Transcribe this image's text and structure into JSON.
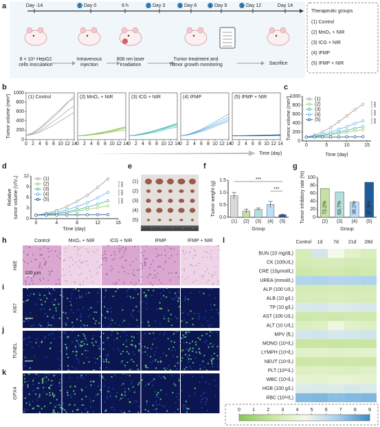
{
  "panel_labels": [
    "a",
    "b",
    "c",
    "d",
    "e",
    "f",
    "g",
    "h",
    "i",
    "j",
    "k",
    "l"
  ],
  "scheme": {
    "timeline": [
      {
        "label": "Day -14"
      },
      {
        "step": "1",
        "label": "Day 0"
      },
      {
        "label": "6 h"
      },
      {
        "step": "2",
        "label": "Day 3"
      },
      {
        "step": "3",
        "label": "Day 6"
      },
      {
        "step": "4",
        "label": "Day 9"
      },
      {
        "step": "5",
        "label": "Day 12"
      },
      {
        "label": "Day 14"
      }
    ],
    "stages": [
      [
        "8 × 10⁶ HepG2",
        "cells inoculation"
      ],
      [
        "Intravenous",
        "injection"
      ],
      [
        "808 nm laser",
        "irradiation"
      ],
      [
        "Tumor treatment and",
        "Tumor growth monitoring"
      ],
      [
        "Sacrifice"
      ]
    ],
    "groups_title": "Therapeutic groups",
    "groups": [
      "(1) Control",
      "(2) MnO₂ + NIR",
      "(3) ICG + NIR",
      "(4) IFMP",
      "(5) IFMP + NIR"
    ]
  },
  "chart_data": [
    {
      "type": "line",
      "title": "(1) Control",
      "y_label": "Tumor volume (mm³)",
      "x_label": "Time (day)",
      "x": [
        0,
        2,
        4,
        6,
        8,
        10,
        12,
        14
      ],
      "xlim": [
        0,
        14
      ],
      "xticks": [
        0,
        2,
        4,
        6,
        8,
        10,
        12,
        14
      ],
      "ylim": [
        0,
        1000
      ],
      "yticks": [
        0,
        200,
        400,
        600,
        800,
        1000
      ],
      "series": [
        {
          "color": "#9e9e9e",
          "values": [
            90,
            140,
            230,
            350,
            480,
            620,
            780,
            930
          ]
        },
        {
          "color": "#9e9e9e",
          "values": [
            90,
            150,
            250,
            380,
            520,
            650,
            800,
            880
          ]
        },
        {
          "color": "#9e9e9e",
          "values": [
            90,
            120,
            190,
            280,
            390,
            500,
            620,
            720
          ]
        },
        {
          "color": "#9e9e9e",
          "values": [
            90,
            110,
            160,
            230,
            310,
            400,
            490,
            580
          ]
        }
      ]
    },
    {
      "type": "line",
      "title": "(2) MnO₂ + NIR",
      "x": [
        0,
        2,
        4,
        6,
        8,
        10,
        12,
        14
      ],
      "xlim": [
        0,
        14
      ],
      "xticks": [
        0,
        2,
        4,
        6,
        8,
        10,
        12,
        14
      ],
      "ylim": [
        0,
        1000
      ],
      "series": [
        {
          "color": "#8cc152",
          "values": [
            80,
            95,
            115,
            140,
            170,
            200,
            240,
            280
          ]
        },
        {
          "color": "#8cc152",
          "values": [
            80,
            90,
            105,
            125,
            150,
            180,
            210,
            240
          ]
        },
        {
          "color": "#8cc152",
          "values": [
            80,
            85,
            100,
            115,
            135,
            160,
            185,
            200
          ]
        },
        {
          "color": "#8cc152",
          "values": [
            80,
            90,
            110,
            135,
            165,
            195,
            230,
            260
          ]
        }
      ]
    },
    {
      "type": "line",
      "title": "(3) ICG + NIR",
      "x": [
        0,
        2,
        4,
        6,
        8,
        10,
        12,
        14
      ],
      "xlim": [
        0,
        14
      ],
      "xticks": [
        0,
        2,
        4,
        6,
        8,
        10,
        12,
        14
      ],
      "ylim": [
        0,
        1000
      ],
      "series": [
        {
          "color": "#3fb6b0",
          "values": [
            80,
            100,
            130,
            165,
            205,
            250,
            300,
            350
          ]
        },
        {
          "color": "#3fb6b0",
          "values": [
            80,
            95,
            120,
            150,
            190,
            230,
            270,
            310
          ]
        },
        {
          "color": "#3fb6b0",
          "values": [
            80,
            90,
            110,
            135,
            165,
            200,
            240,
            270
          ]
        },
        {
          "color": "#3fb6b0",
          "values": [
            80,
            100,
            125,
            160,
            200,
            240,
            290,
            330
          ]
        }
      ]
    },
    {
      "type": "line",
      "title": "(4) IFMP",
      "x": [
        0,
        2,
        4,
        6,
        8,
        10,
        12,
        14
      ],
      "xlim": [
        0,
        14
      ],
      "xticks": [
        0,
        2,
        4,
        6,
        8,
        10,
        12,
        14
      ],
      "ylim": [
        0,
        1000
      ],
      "series": [
        {
          "color": "#5aa9e6",
          "values": [
            80,
            110,
            160,
            220,
            300,
            380,
            460,
            550
          ]
        },
        {
          "color": "#5aa9e6",
          "values": [
            80,
            105,
            150,
            205,
            270,
            340,
            410,
            480
          ]
        },
        {
          "color": "#5aa9e6",
          "values": [
            80,
            100,
            140,
            190,
            250,
            310,
            370,
            430
          ]
        },
        {
          "color": "#5aa9e6",
          "values": [
            80,
            95,
            130,
            170,
            220,
            280,
            340,
            390
          ]
        }
      ]
    },
    {
      "type": "line",
      "title": "(5) IFMP + NIR",
      "x": [
        0,
        2,
        4,
        6,
        8,
        10,
        12,
        14
      ],
      "xlim": [
        0,
        14
      ],
      "xticks": [
        0,
        2,
        4,
        6,
        8,
        10,
        12,
        14
      ],
      "ylim": [
        0,
        1000
      ],
      "series": [
        {
          "color": "#1f5f99",
          "values": [
            80,
            80,
            82,
            85,
            88,
            90,
            92,
            95
          ]
        },
        {
          "color": "#1f5f99",
          "values": [
            80,
            78,
            78,
            80,
            82,
            84,
            86,
            88
          ]
        },
        {
          "color": "#1f5f99",
          "values": [
            80,
            82,
            85,
            88,
            92,
            96,
            100,
            105
          ]
        },
        {
          "color": "#1f5f99",
          "values": [
            80,
            79,
            80,
            82,
            83,
            85,
            87,
            90
          ]
        }
      ]
    },
    {
      "type": "line",
      "y_label": "Tumor volume (mm³)",
      "x_label": "Time (day)",
      "markers": true,
      "x": [
        0,
        2,
        4,
        6,
        8,
        10,
        12,
        14
      ],
      "xlim": [
        -1,
        16
      ],
      "xticks": [
        0,
        5,
        10,
        15
      ],
      "ylim": [
        0,
        1000
      ],
      "yticks": [
        0,
        200,
        400,
        600,
        800,
        1000
      ],
      "annotations": [
        "***",
        "***",
        "***"
      ],
      "series": [
        {
          "name": "(1)",
          "color": "#9e9e9e",
          "values": [
            90,
            130,
            200,
            300,
            430,
            560,
            700,
            820
          ]
        },
        {
          "name": "(2)",
          "color": "#9ccc65",
          "values": [
            85,
            95,
            115,
            140,
            170,
            200,
            230,
            250
          ]
        },
        {
          "name": "(3)",
          "color": "#4db6ac",
          "values": [
            85,
            100,
            125,
            160,
            200,
            240,
            280,
            320
          ]
        },
        {
          "name": "(4)",
          "color": "#64b5f6",
          "values": [
            85,
            110,
            150,
            200,
            260,
            320,
            390,
            450
          ]
        },
        {
          "name": "(5)",
          "color": "#1e5c9b",
          "values": [
            85,
            85,
            87,
            88,
            90,
            92,
            94,
            95
          ]
        }
      ]
    },
    {
      "type": "line",
      "y_label": [
        "Relative",
        "tumor volume (V/V₀)"
      ],
      "x_label": "Time (day)",
      "markers": true,
      "x": [
        0,
        2,
        4,
        6,
        8,
        10,
        12,
        14
      ],
      "xlim": [
        -1,
        16
      ],
      "xticks": [
        0,
        4,
        8,
        12,
        16
      ],
      "ylim": [
        0,
        12
      ],
      "yticks": [
        0,
        3,
        6,
        9,
        12
      ],
      "annotations": [
        "***",
        "***",
        "***"
      ],
      "series": [
        {
          "name": "(1)",
          "color": "#9e9e9e",
          "values": [
            1,
            1.5,
            2.3,
            3.4,
            4.9,
            6.6,
            8.8,
            11.2
          ]
        },
        {
          "name": "(2)",
          "color": "#9ccc65",
          "values": [
            1,
            1.1,
            1.35,
            1.7,
            2.1,
            2.6,
            3.1,
            3.6
          ]
        },
        {
          "name": "(3)",
          "color": "#4db6ac",
          "values": [
            1,
            1.2,
            1.5,
            1.9,
            2.5,
            3.2,
            4.1,
            5
          ]
        },
        {
          "name": "(4)",
          "color": "#64b5f6",
          "values": [
            1,
            1.3,
            1.8,
            2.5,
            3.4,
            4.5,
            5.9,
            7.4
          ]
        },
        {
          "name": "(5)",
          "color": "#1e5c9b",
          "values": [
            1,
            1,
            1.02,
            1.05,
            1.08,
            1.1,
            1.12,
            1.15
          ]
        }
      ]
    },
    {
      "type": "bar",
      "y_label": "Tumor weight (g)",
      "x_label": "Group",
      "categories": [
        "(1)",
        "(2)",
        "(3)",
        "(4)",
        "(5)"
      ],
      "values": [
        0.87,
        0.25,
        0.32,
        0.52,
        0.1
      ],
      "errors": [
        0.13,
        0.08,
        0.05,
        0.12,
        0.02
      ],
      "colors": [
        "#d9d9d9",
        "#c5e1a5",
        "#b2dfdb",
        "#bbdefb",
        "#1e5c9b"
      ],
      "ylim": [
        0,
        1.5
      ],
      "yticks": [
        {
          "value": 0,
          "label": "0.0"
        },
        {
          "value": 0.5,
          "label": "0.5"
        },
        {
          "value": 1,
          "label": "1.0"
        },
        {
          "value": 1.5,
          "label": "1.5"
        }
      ],
      "annotations": [
        "***",
        "***"
      ]
    },
    {
      "type": "bar",
      "y_label": "Tumor inhibitory rate (%)",
      "x_label": "Group",
      "categories": [
        "(2)",
        "(3)",
        "(4)",
        "(5)"
      ],
      "values": [
        72.2,
        63.7,
        38.2,
        87.9
      ],
      "value_labels": [
        "72.2%",
        "63.7%",
        "38.2%",
        "87.9%"
      ],
      "colors": [
        "#c5e1a5",
        "#b2dfdb",
        "#bbdefb",
        "#1e5c9b"
      ],
      "ylim": [
        0,
        100
      ],
      "yticks": [
        0,
        20,
        40,
        60,
        80,
        100
      ]
    },
    {
      "type": "heatmap",
      "columns": [
        "Control",
        "1d",
        "7d",
        "21d",
        "28d"
      ],
      "rows": [
        "BUN (10 mg/dL)",
        "CK (100U/L)",
        "CRE (10μmol/L)",
        "UREA (mmol/L)",
        "ALP (100 U/L)",
        "ALB (10 g/L)",
        "TP (10 g/L)",
        "AST (100 U/L)",
        "ALT (10 U/L)",
        "MPV (fL)",
        "MONO (10⁹/L)",
        "LYMPH (10⁹/L)",
        "NEUT (10⁹/L)",
        "PLT (10¹¹/L)",
        "WBC (10⁹/L)",
        "HGB (100 g/L)",
        "RBC (10¹²/L)"
      ],
      "values": [
        [
          3,
          5.5,
          4.5,
          3.5,
          3.2
        ],
        [
          2.8,
          3,
          3,
          2.9,
          2.8
        ],
        [
          2.5,
          2.6,
          2.7,
          2.5,
          2.6
        ],
        [
          6.5,
          6.6,
          6.4,
          6.5,
          6.6
        ],
        [
          2.8,
          2.9,
          3,
          2.8,
          2.9
        ],
        [
          3,
          3,
          3.1,
          3,
          3
        ],
        [
          5.3,
          5.4,
          5.2,
          5.3,
          5.4
        ],
        [
          2.5,
          2.6,
          2.5,
          2.7,
          2.6
        ],
        [
          3.2,
          3.4,
          4.2,
          3.5,
          3.3
        ],
        [
          5.5,
          5.6,
          5.4,
          5.5,
          5.6
        ],
        [
          2.2,
          2.3,
          2.2,
          2.3,
          2.2
        ],
        [
          3.5,
          3.6,
          3.4,
          3.5,
          3.6
        ],
        [
          2.4,
          2.5,
          2.4,
          2.5,
          2.4
        ],
        [
          3.3,
          3.4,
          3.3,
          3.2,
          3.4
        ],
        [
          3.8,
          3.7,
          3.9,
          3.8,
          3.7
        ],
        [
          5.2,
          5.3,
          5.2,
          5.4,
          5.3
        ],
        [
          7.5,
          7.6,
          7.4,
          7.5,
          7.6
        ]
      ],
      "colorbar_lim": [
        0,
        9
      ],
      "colorbar_ticks": [
        0,
        1,
        2,
        3,
        4,
        5,
        6,
        7,
        8,
        9
      ],
      "colorscale": [
        "#86c556",
        "#c9e6a3",
        "#f4f9e8",
        "#a9d0ec",
        "#3a8dc8"
      ]
    }
  ],
  "tumor_photo": {
    "rows": [
      "(1)",
      "(2)",
      "(3)",
      "(4)",
      "(5)"
    ]
  },
  "histology": {
    "columns": [
      "Control",
      "MnO₂ + NIR",
      "ICG + NIR",
      "IFMP",
      "IFMP + NIR"
    ],
    "rows": [
      {
        "label": "H&E",
        "scale_bar": "100 μm"
      },
      {
        "label": "Ki67",
        "scale_bar": "50 μm"
      },
      {
        "label": "TUNEL",
        "scale_bar": "50 μm"
      },
      {
        "label": "GPX4"
      }
    ]
  }
}
